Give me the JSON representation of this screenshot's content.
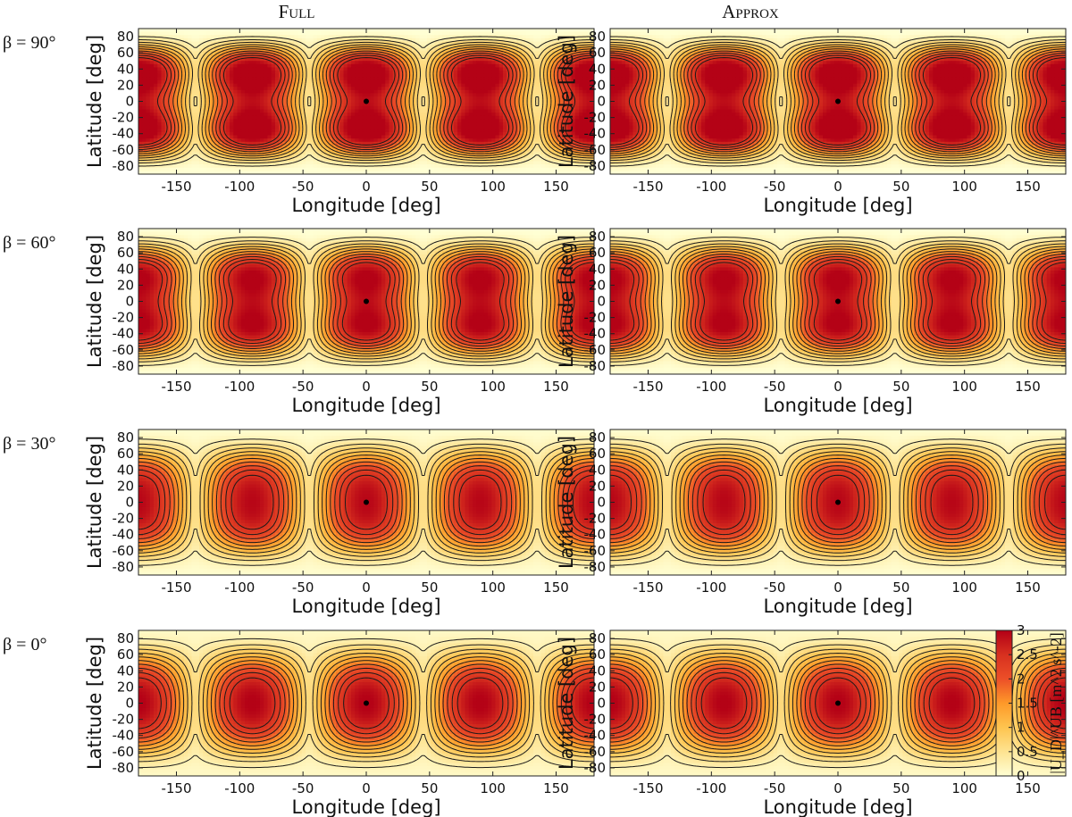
{
  "chart_data": {
    "type": "heatmap",
    "columns": [
      {
        "title_lead": "F",
        "title_rest": "ULL"
      },
      {
        "title_lead": "A",
        "title_rest": "PPROX"
      }
    ],
    "rows": [
      {
        "beta_label": "β = 90°",
        "beta_deg": 90
      },
      {
        "beta_label": "β = 60°",
        "beta_deg": 60
      },
      {
        "beta_label": "β = 30°",
        "beta_deg": 30
      },
      {
        "beta_label": "β = 0°",
        "beta_deg": 0
      }
    ],
    "xlabel": "Longitude [deg]",
    "ylabel": "Latitude [deg]",
    "xlim": [
      -180,
      180
    ],
    "ylim": [
      -90,
      90
    ],
    "xticks": [
      -150,
      -100,
      -50,
      0,
      50,
      100,
      150
    ],
    "yticks": [
      80,
      60,
      40,
      20,
      0,
      -20,
      -40,
      -60,
      -80
    ],
    "peak_longitudes": [
      -180,
      -90,
      0,
      90,
      180
    ],
    "sub_point": {
      "lon": 0,
      "lat": 0
    },
    "colorbar": {
      "label": "|U_D|^UB [m^2 s^-2]",
      "min": 0,
      "max": 3,
      "ticks": [
        0,
        0.5,
        1,
        1.5,
        2,
        2.5,
        3
      ],
      "tick_labels": [
        "0",
        "0.5",
        "1",
        "1.5",
        "2",
        "2.5",
        "3"
      ]
    },
    "contour_levels": [
      0.25,
      0.5,
      0.75,
      1.0,
      1.25,
      1.5,
      1.75,
      2.0,
      2.25,
      2.5
    ],
    "colors": [
      "#ffffd4",
      "#fee391",
      "#fec44f",
      "#fe9929",
      "#ec4f28",
      "#d7301f",
      "#b30016"
    ]
  }
}
